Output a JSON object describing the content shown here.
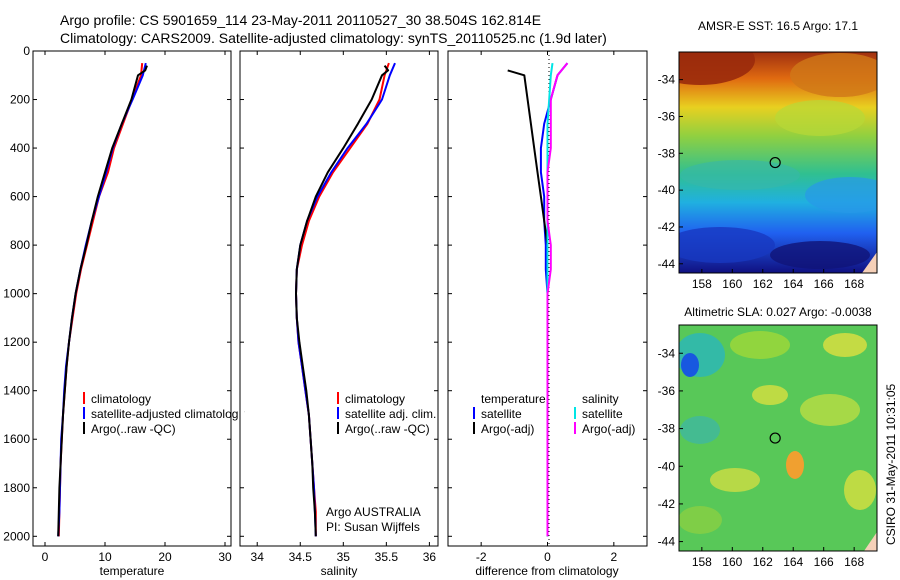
{
  "header": {
    "line1": "Argo profile: CS 5901659_114 23-May-2011 20110527_30 38.504S 162.814E",
    "line2": "Climatology: CARS2009. Satellite-adjusted climatology: synTS_20110525.nc (1.9d later)"
  },
  "footer_credit": "CSIRO 31-May-2011 10:31:05",
  "colors": {
    "climatology": "#ff0000",
    "satellite": "#0000ff",
    "argo": "#000000",
    "sal_satellite": "#00e5e5",
    "sal_argo": "#ff00ff"
  },
  "chart_data": [
    {
      "type": "line",
      "xlabel": "temperature",
      "ylabel": "",
      "xlim": [
        -2,
        31
      ],
      "ylim": [
        0,
        2040
      ],
      "y_reversed": true,
      "xticks": [
        "0",
        "10",
        "20",
        "30"
      ],
      "yticks": [
        "0",
        "200",
        "400",
        "600",
        "800",
        "1000",
        "1200",
        "1400",
        "1600",
        "1800",
        "2000"
      ],
      "legend": [
        "climatology",
        "satellite-adjusted climatology",
        "Argo(..raw -QC)"
      ],
      "series": [
        {
          "name": "climatology",
          "color": "#ff0000",
          "points": [
            [
              16.2,
              50
            ],
            [
              16.0,
              100
            ],
            [
              14.5,
              200
            ],
            [
              13.0,
              300
            ],
            [
              11.5,
              400
            ],
            [
              10.5,
              500
            ],
            [
              9.0,
              600
            ],
            [
              8.0,
              700
            ],
            [
              7.0,
              800
            ],
            [
              6.0,
              900
            ],
            [
              5.2,
              1000
            ],
            [
              4.6,
              1100
            ],
            [
              4.0,
              1200
            ],
            [
              3.6,
              1300
            ],
            [
              3.3,
              1400
            ],
            [
              3.0,
              1500
            ],
            [
              2.8,
              1600
            ],
            [
              2.6,
              1700
            ],
            [
              2.5,
              1800
            ],
            [
              2.4,
              1900
            ],
            [
              2.3,
              2000
            ]
          ]
        },
        {
          "name": "satellite-adjusted climatology",
          "color": "#0000ff",
          "points": [
            [
              16.8,
              50
            ],
            [
              16.3,
              100
            ],
            [
              14.6,
              200
            ],
            [
              12.8,
              300
            ],
            [
              11.3,
              400
            ],
            [
              10.2,
              500
            ],
            [
              9.0,
              600
            ],
            [
              7.8,
              700
            ],
            [
              6.8,
              800
            ],
            [
              5.9,
              900
            ],
            [
              5.1,
              1000
            ],
            [
              4.5,
              1100
            ],
            [
              4.0,
              1200
            ],
            [
              3.5,
              1300
            ],
            [
              3.2,
              1400
            ],
            [
              3.0,
              1500
            ],
            [
              2.7,
              1600
            ],
            [
              2.6,
              1700
            ],
            [
              2.5,
              1800
            ],
            [
              2.4,
              1900
            ],
            [
              2.2,
              2000
            ]
          ]
        },
        {
          "name": "Argo(..raw -QC)",
          "color": "#000000",
          "points": [
            [
              17.0,
              60
            ],
            [
              16.7,
              80
            ],
            [
              15.5,
              100
            ],
            [
              14.4,
              200
            ],
            [
              12.8,
              300
            ],
            [
              11.2,
              400
            ],
            [
              10.0,
              500
            ],
            [
              8.8,
              600
            ],
            [
              7.8,
              700
            ],
            [
              6.9,
              800
            ],
            [
              5.9,
              900
            ],
            [
              5.1,
              1000
            ],
            [
              4.5,
              1100
            ],
            [
              4.0,
              1200
            ],
            [
              3.6,
              1300
            ],
            [
              3.3,
              1400
            ],
            [
              3.0,
              1500
            ],
            [
              2.8,
              1600
            ],
            [
              2.6,
              1700
            ],
            [
              2.4,
              1800
            ],
            [
              2.3,
              1900
            ],
            [
              2.2,
              2000
            ]
          ]
        }
      ]
    },
    {
      "type": "line",
      "xlabel": "salinity",
      "ylabel": "",
      "xlim": [
        33.8,
        36.1
      ],
      "ylim": [
        0,
        2040
      ],
      "y_reversed": true,
      "xticks": [
        "34",
        "34.5",
        "35",
        "35.5",
        "36"
      ],
      "legend": [
        "climatology",
        "satellite adj. clim.",
        "Argo(..raw -QC)"
      ],
      "annotations": [
        "Argo AUSTRALIA",
        "PI: Susan Wijffels"
      ],
      "series": [
        {
          "name": "climatology",
          "color": "#ff0000",
          "points": [
            [
              35.53,
              50
            ],
            [
              35.48,
              100
            ],
            [
              35.42,
              200
            ],
            [
              35.28,
              300
            ],
            [
              35.08,
              400
            ],
            [
              34.88,
              500
            ],
            [
              34.72,
              600
            ],
            [
              34.6,
              700
            ],
            [
              34.52,
              800
            ],
            [
              34.46,
              900
            ],
            [
              34.45,
              1000
            ],
            [
              34.46,
              1100
            ],
            [
              34.48,
              1200
            ],
            [
              34.52,
              1300
            ],
            [
              34.56,
              1400
            ],
            [
              34.6,
              1500
            ],
            [
              34.62,
              1600
            ],
            [
              34.64,
              1700
            ],
            [
              34.66,
              1800
            ],
            [
              34.68,
              1900
            ],
            [
              34.68,
              2000
            ]
          ]
        },
        {
          "name": "satellite adj. clim.",
          "color": "#0000ff",
          "points": [
            [
              35.6,
              50
            ],
            [
              35.54,
              100
            ],
            [
              35.45,
              200
            ],
            [
              35.27,
              300
            ],
            [
              35.05,
              400
            ],
            [
              34.86,
              500
            ],
            [
              34.7,
              600
            ],
            [
              34.58,
              700
            ],
            [
              34.5,
              800
            ],
            [
              34.46,
              900
            ],
            [
              34.45,
              1000
            ],
            [
              34.46,
              1100
            ],
            [
              34.48,
              1200
            ],
            [
              34.52,
              1300
            ],
            [
              34.56,
              1400
            ],
            [
              34.6,
              1500
            ],
            [
              34.62,
              1600
            ],
            [
              34.64,
              1700
            ],
            [
              34.66,
              1800
            ],
            [
              34.67,
              1900
            ],
            [
              34.68,
              2000
            ]
          ]
        },
        {
          "name": "Argo(..raw -QC)",
          "color": "#000000",
          "points": [
            [
              35.48,
              60
            ],
            [
              35.52,
              80
            ],
            [
              35.45,
              100
            ],
            [
              35.33,
              200
            ],
            [
              35.17,
              300
            ],
            [
              35.0,
              400
            ],
            [
              34.82,
              500
            ],
            [
              34.68,
              600
            ],
            [
              34.58,
              700
            ],
            [
              34.5,
              800
            ],
            [
              34.46,
              900
            ],
            [
              34.45,
              1000
            ],
            [
              34.46,
              1100
            ],
            [
              34.49,
              1200
            ],
            [
              34.53,
              1300
            ],
            [
              34.57,
              1400
            ],
            [
              34.6,
              1500
            ],
            [
              34.62,
              1600
            ],
            [
              34.64,
              1700
            ],
            [
              34.65,
              1800
            ],
            [
              34.67,
              1900
            ],
            [
              34.68,
              2000
            ]
          ]
        }
      ]
    },
    {
      "type": "line",
      "xlabel": "difference from climatology",
      "ylabel": "",
      "xlim": [
        -3,
        3
      ],
      "ylim": [
        0,
        2040
      ],
      "y_reversed": true,
      "xticks": [
        "-2",
        "0",
        "2"
      ],
      "legend_groups": [
        {
          "heading": "temperature",
          "entries": [
            "satellite",
            "Argo(-adj)"
          ]
        },
        {
          "heading": "salinity",
          "entries": [
            "satellite",
            "Argo(-adj)"
          ]
        }
      ],
      "series": [
        {
          "name": "satellite",
          "group": "temperature",
          "color": "#0000ff",
          "points": [
            [
              0.6,
              50
            ],
            [
              0.3,
              100
            ],
            [
              0.1,
              200
            ],
            [
              -0.1,
              300
            ],
            [
              -0.2,
              400
            ],
            [
              -0.2,
              500
            ],
            [
              -0.1,
              600
            ],
            [
              -0.1,
              700
            ],
            [
              -0.05,
              800
            ],
            [
              -0.05,
              900
            ],
            [
              0,
              1000
            ],
            [
              0,
              1200
            ],
            [
              0,
              1400
            ],
            [
              0,
              1600
            ],
            [
              0,
              1800
            ],
            [
              0,
              2000
            ]
          ]
        },
        {
          "name": "Argo(-adj)",
          "group": "temperature",
          "color": "#000000",
          "points": [
            [
              -1.2,
              80
            ],
            [
              -0.7,
              100
            ],
            [
              -0.6,
              200
            ],
            [
              -0.5,
              300
            ],
            [
              -0.4,
              400
            ],
            [
              -0.3,
              500
            ],
            [
              -0.2,
              600
            ],
            [
              -0.1,
              700
            ],
            [
              0,
              800
            ],
            [
              0,
              1000
            ],
            [
              0,
              1400
            ],
            [
              0,
              1600
            ],
            [
              0,
              2000
            ]
          ]
        },
        {
          "name": "satellite",
          "group": "salinity",
          "color": "#00e5e5",
          "points": [
            [
              0.15,
              50
            ],
            [
              0.1,
              100
            ],
            [
              0.05,
              200
            ],
            [
              0,
              300
            ],
            [
              0,
              400
            ],
            [
              0,
              500
            ],
            [
              0,
              600
            ],
            [
              0,
              700
            ],
            [
              0,
              800
            ],
            [
              0,
              900
            ],
            [
              0,
              1000
            ],
            [
              0,
              1200
            ],
            [
              0,
              1400
            ],
            [
              0,
              1600
            ],
            [
              0,
              1800
            ],
            [
              0,
              2000
            ]
          ]
        },
        {
          "name": "Argo(-adj)",
          "group": "salinity",
          "color": "#ff00ff",
          "points": [
            [
              0.6,
              50
            ],
            [
              0.3,
              100
            ],
            [
              0.2,
              150
            ],
            [
              0.1,
              200
            ],
            [
              0.1,
              300
            ],
            [
              0.1,
              400
            ],
            [
              0,
              500
            ],
            [
              0,
              600
            ],
            [
              0,
              700
            ],
            [
              0.1,
              800
            ],
            [
              0.1,
              900
            ],
            [
              0,
              1000
            ],
            [
              0,
              1200
            ],
            [
              0,
              1400
            ],
            [
              0,
              1600
            ],
            [
              0,
              1800
            ],
            [
              0,
              2000
            ]
          ]
        }
      ]
    },
    {
      "type": "heatmap",
      "title": "AMSR-E SST: 16.5 Argo: 17.1",
      "xlim": [
        156.5,
        169.5
      ],
      "ylim": [
        -44.5,
        -32.5
      ],
      "xticks": [
        "158",
        "160",
        "162",
        "164",
        "166",
        "168"
      ],
      "yticks": [
        "-34",
        "-36",
        "-38",
        "-40",
        "-42",
        "-44"
      ],
      "marker": {
        "lon": 162.814,
        "lat": -38.504
      }
    },
    {
      "type": "heatmap",
      "title": "Altimetric SLA: 0.027 Argo: -0.0038",
      "xlim": [
        156.5,
        169.5
      ],
      "ylim": [
        -44.5,
        -32.5
      ],
      "xticks": [
        "158",
        "160",
        "162",
        "164",
        "166",
        "168"
      ],
      "yticks": [
        "-34",
        "-36",
        "-38",
        "-40",
        "-42",
        "-44"
      ],
      "marker": {
        "lon": 162.814,
        "lat": -38.504
      }
    }
  ]
}
